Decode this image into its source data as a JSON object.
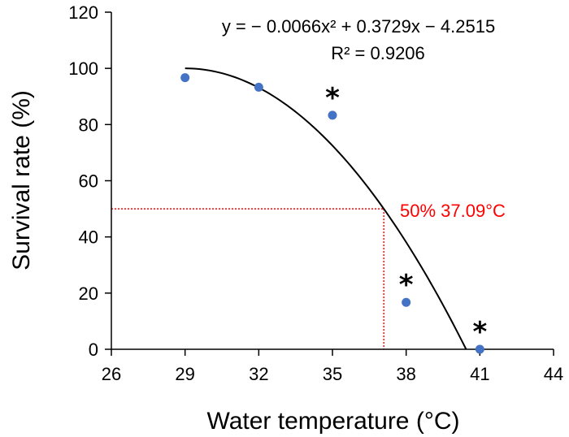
{
  "chart_data": {
    "type": "scatter",
    "xlabel": "Water temperature (°C)",
    "ylabel": "Survival rate (%)",
    "xlim": [
      26,
      44
    ],
    "ylim": [
      0,
      120
    ],
    "x_ticks": [
      26,
      29,
      32,
      35,
      38,
      41,
      44
    ],
    "y_ticks": [
      0,
      20,
      40,
      60,
      80,
      100,
      120
    ],
    "grid": false,
    "legend": "none",
    "series": [
      {
        "color": "#4472c4",
        "points": [
          {
            "x": 29,
            "y": 96.7,
            "significant": false
          },
          {
            "x": 32,
            "y": 93.3,
            "significant": false
          },
          {
            "x": 35,
            "y": 83.3,
            "significant": true
          },
          {
            "x": 38,
            "y": 16.7,
            "significant": true
          },
          {
            "x": 41,
            "y": 0,
            "significant": true
          }
        ]
      }
    ],
    "significance_marker": "*",
    "trendline": {
      "type": "polynomial",
      "coefficients": {
        "a": -0.0066,
        "b": 0.3729,
        "c": -4.2515
      },
      "equation_text": "y = − 0.0066x² + 0.3729x − 4.2515",
      "r2_text": "R² = 0.9206",
      "color": "#000000"
    },
    "reference": {
      "label": "50% 37.09°C",
      "x": 37.09,
      "y": 50,
      "color": "#ff0000"
    }
  }
}
